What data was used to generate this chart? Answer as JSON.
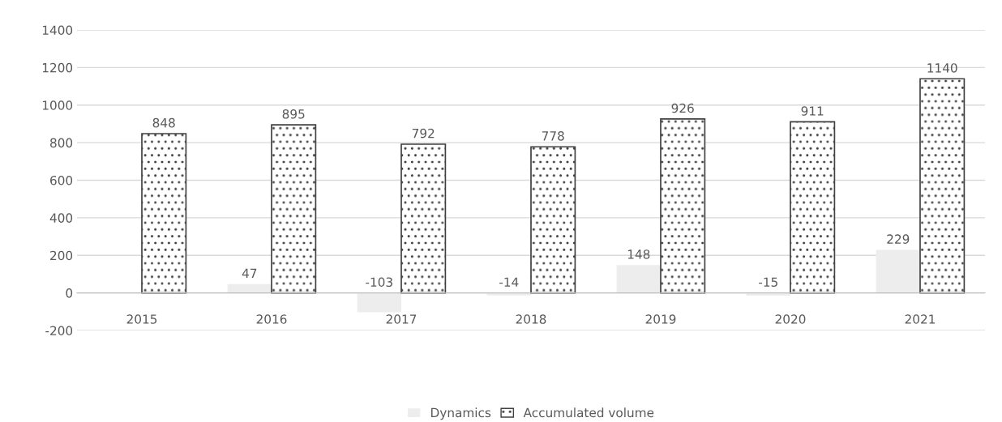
{
  "chart_data": {
    "type": "bar",
    "categories": [
      "2015",
      "2016",
      "2017",
      "2018",
      "2019",
      "2020",
      "2021"
    ],
    "series": [
      {
        "name": "Dynamics",
        "color": "#ededed",
        "values": [
          null,
          47,
          -103,
          -14,
          148,
          -15,
          229
        ]
      },
      {
        "name": "Accumulated volume",
        "color": "#404040",
        "values": [
          848,
          895,
          792,
          778,
          926,
          911,
          1140
        ]
      }
    ],
    "ylim": [
      -200,
      1400
    ],
    "yticks": [
      -200,
      0,
      200,
      400,
      600,
      800,
      1000,
      1200,
      1400
    ],
    "grid": "y",
    "data_labels": true,
    "legend": "bottom"
  }
}
